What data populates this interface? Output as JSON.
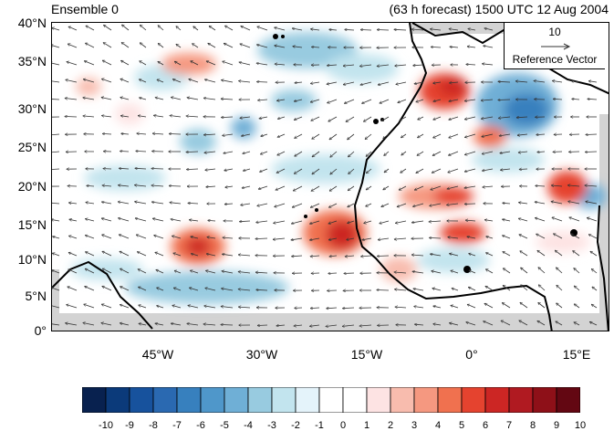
{
  "title": {
    "left": "Ensemble 0",
    "right": "(63 h forecast) 1500 UTC 12 Aug 2004"
  },
  "axes": {
    "y_ticks": [
      "40°N",
      "35°N",
      "30°N",
      "25°N",
      "20°N",
      "15°N",
      "10°N",
      "5°N",
      "0°"
    ],
    "x_ticks": [
      "45°W",
      "30°W",
      "15°W",
      "0°",
      "15°E"
    ]
  },
  "reference_vector": {
    "magnitude": "10",
    "label": "Reference Vector"
  },
  "colorbar": {
    "labels": [
      "-10",
      "-9",
      "-8",
      "-7",
      "-6",
      "-5",
      "-4",
      "-3",
      "-2",
      "-1",
      "0",
      "1",
      "2",
      "3",
      "4",
      "5",
      "6",
      "7",
      "8",
      "9",
      "10"
    ],
    "colors": [
      "#08214f",
      "#0b3a7a",
      "#17529d",
      "#2a69b1",
      "#3780be",
      "#4f97ca",
      "#6fafd6",
      "#98cbe0",
      "#c2e4ee",
      "#e4f3fa",
      "#ffffff",
      "#ffffff",
      "#fde3e3",
      "#f8bcae",
      "#f59880",
      "#f0714f",
      "#e5432f",
      "#cc2624",
      "#b01a21",
      "#8e1018",
      "#630712"
    ]
  },
  "colors": {
    "land_fill": "#d3d3d3",
    "coast": "#000000",
    "arrow": "#333333"
  }
}
